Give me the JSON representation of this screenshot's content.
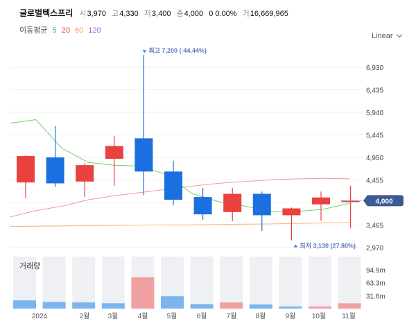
{
  "header": {
    "name": "글로벌텍스프리",
    "open_label": "시",
    "open_value": "3,970",
    "high_label": "고",
    "high_value": "4,330",
    "low_label": "저",
    "low_value": "3,400",
    "close_label": "종",
    "close_value": "4,000",
    "change": "0 0.00%",
    "volume_label": "거",
    "volume_value": "16,669,965"
  },
  "moving_average": {
    "title": "이동평균",
    "periods": [
      {
        "label": "5",
        "color": "#3cb371"
      },
      {
        "label": "20",
        "color": "#e8453c"
      },
      {
        "label": "60",
        "color": "#f0a040"
      },
      {
        "label": "120",
        "color": "#8a63d2"
      }
    ]
  },
  "scale_selector": {
    "label": "Linear",
    "icon": "chevron-down-icon"
  },
  "annotations": {
    "high": "최고 7,200 (-44.44%)",
    "low": "최저 3,130 (27.80%)"
  },
  "current_price_badge": "4,000",
  "volume_title": "거래량",
  "colors": {
    "up": "#e8413e",
    "down": "#1b6fe0",
    "vol_up": "#f0a0a0",
    "vol_down": "#7cb4f0"
  },
  "chart_data": {
    "type": "candlestick",
    "y_ticks": [
      "6,930",
      "6,435",
      "5,940",
      "5,445",
      "4,950",
      "4,455",
      "3,965",
      "3,465",
      "2,970"
    ],
    "x_labels": [
      "2024",
      "2월",
      "3월",
      "4월",
      "5월",
      "6월",
      "7월",
      "8월",
      "9월",
      "10월",
      "11월"
    ],
    "candles": [
      {
        "open": 4400,
        "close": 4980,
        "high": 5000,
        "low": 4050
      },
      {
        "open": 4950,
        "close": 4380,
        "high": 5640,
        "low": 4300
      },
      {
        "open": 4420,
        "close": 4780,
        "high": 4830,
        "low": 4080
      },
      {
        "open": 4920,
        "close": 5200,
        "high": 5430,
        "low": 4330
      },
      {
        "open": 5370,
        "close": 4640,
        "high": 7200,
        "low": 4120
      },
      {
        "open": 4640,
        "close": 4020,
        "high": 4880,
        "low": 3900
      },
      {
        "open": 4080,
        "close": 3700,
        "high": 4280,
        "low": 3580
      },
      {
        "open": 3750,
        "close": 4150,
        "high": 4280,
        "low": 3550
      },
      {
        "open": 4150,
        "close": 3680,
        "high": 4200,
        "low": 3330
      },
      {
        "open": 3680,
        "close": 3830,
        "high": 3850,
        "low": 3130
      },
      {
        "open": 3920,
        "close": 4070,
        "high": 4200,
        "low": 3560
      },
      {
        "open": 3970,
        "close": 4000,
        "high": 4330,
        "low": 3400
      }
    ],
    "ma5": [
      5700,
      5780,
      5150,
      4840,
      4780,
      4760,
      4570,
      4150,
      3980,
      3880,
      3760,
      3760,
      3810,
      3940
    ],
    "ma20": [
      3640,
      3780,
      3880,
      4020,
      4110,
      4180,
      4250,
      4320,
      4380,
      4420,
      4460,
      4480,
      4490,
      4480
    ],
    "ma60": [
      3430,
      3437,
      3443,
      3450,
      3457,
      3463,
      3468,
      3470,
      3477,
      3483,
      3490,
      3500,
      3510,
      3520
    ],
    "volume_labels": [
      "94.9m",
      "63.3m",
      "31.6m"
    ],
    "volume_max": 126.6,
    "volumes": [
      20,
      16,
      15,
      13,
      76,
      30,
      11,
      15,
      10,
      5,
      5,
      13
    ],
    "volume_dir": [
      "down",
      "down",
      "down",
      "down",
      "up",
      "down",
      "down",
      "up",
      "down",
      "down",
      "up",
      "up"
    ]
  }
}
